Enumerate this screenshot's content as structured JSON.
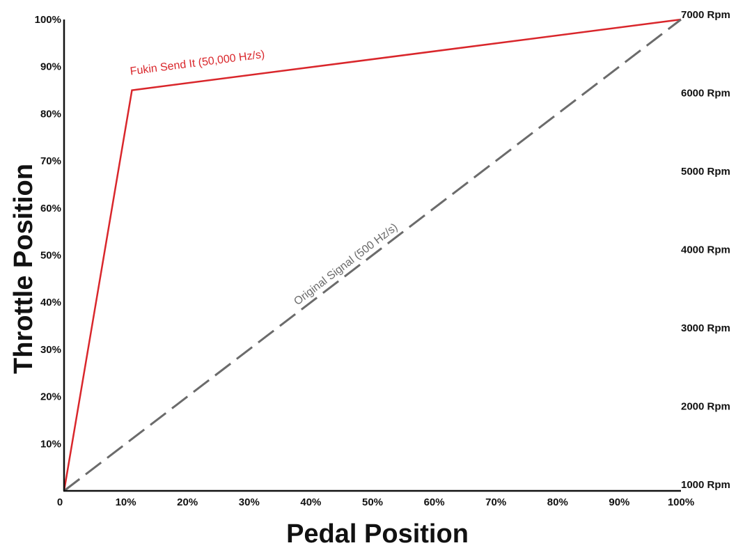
{
  "chart_data": {
    "type": "line",
    "xlabel": "Pedal Position",
    "ylabel": "Throttle Position",
    "xlim": [
      0,
      100
    ],
    "ylim": [
      0,
      100
    ],
    "x_ticks": [
      "0",
      "10%",
      "20%",
      "30%",
      "40%",
      "50%",
      "60%",
      "70%",
      "80%",
      "90%",
      "100%"
    ],
    "y_ticks": [
      "10%",
      "20%",
      "30%",
      "40%",
      "50%",
      "60%",
      "70%",
      "80%",
      "90%",
      "100%"
    ],
    "y2_ticks": [
      "1000 Rpm",
      "2000 Rpm",
      "3000 Rpm",
      "4000 Rpm",
      "5000 Rpm",
      "6000 Rpm",
      "7000 Rpm"
    ],
    "y2lim": [
      1000,
      7000
    ],
    "grid": false,
    "series": [
      {
        "name": "Fukin Send It (50,000 Hz/s)",
        "color": "#d9262b",
        "style": "solid",
        "points": [
          [
            0,
            0
          ],
          [
            11,
            85
          ],
          [
            100,
            100
          ]
        ]
      },
      {
        "name": "Original Signal (500 Hz/s)",
        "color": "#6b6b6b",
        "style": "dashed",
        "points": [
          [
            0,
            0
          ],
          [
            100,
            100
          ]
        ]
      }
    ]
  }
}
